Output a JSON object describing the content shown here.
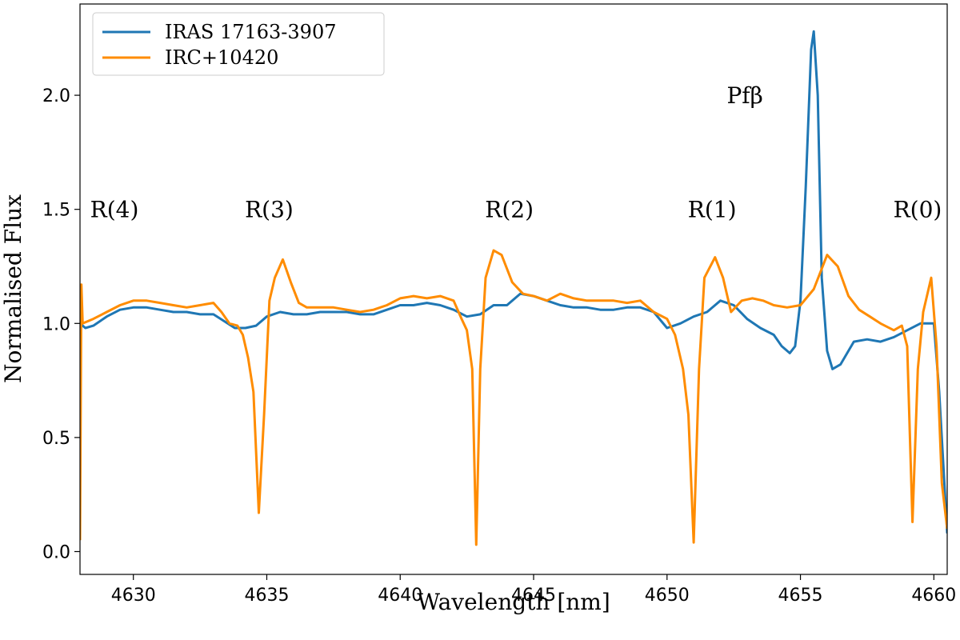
{
  "chart_data": {
    "type": "line",
    "title": "",
    "xlabel": "Wavelength [nm]",
    "ylabel": "Normalised Flux",
    "xlim": [
      4628.0,
      4660.5
    ],
    "ylim": [
      -0.1,
      2.4
    ],
    "xticks": [
      4630,
      4635,
      4640,
      4645,
      4650,
      4655,
      4660
    ],
    "yticks": [
      0.0,
      0.5,
      1.0,
      1.5,
      2.0
    ],
    "xtick_labels": [
      "4630",
      "4635",
      "4640",
      "4645",
      "4650",
      "4655",
      "4660"
    ],
    "ytick_labels": [
      "0.0",
      "0.5",
      "1.0",
      "1.5",
      "2.0"
    ],
    "grid": false,
    "legend_position": "top-left",
    "annotations": [
      {
        "text": "R(4)",
        "x": 4630.2,
        "y": 1.5
      },
      {
        "text": "R(3)",
        "x": 4636.0,
        "y": 1.5
      },
      {
        "text": "R(2)",
        "x": 4645.0,
        "y": 1.5
      },
      {
        "text": "R(1)",
        "x": 4652.6,
        "y": 1.5
      },
      {
        "text": "Pfβ",
        "x": 4653.6,
        "y": 2.0
      },
      {
        "text": "R(0)",
        "x": 4660.3,
        "y": 1.5
      }
    ],
    "series": [
      {
        "name": "IRAS 17163-3907",
        "color": "#1f77b4",
        "points": [
          [
            4628.0,
            1.0
          ],
          [
            4628.2,
            0.98
          ],
          [
            4628.5,
            0.99
          ],
          [
            4629.0,
            1.03
          ],
          [
            4629.5,
            1.06
          ],
          [
            4630.0,
            1.07
          ],
          [
            4630.5,
            1.07
          ],
          [
            4631.0,
            1.06
          ],
          [
            4631.5,
            1.05
          ],
          [
            4632.0,
            1.05
          ],
          [
            4632.5,
            1.04
          ],
          [
            4633.0,
            1.04
          ],
          [
            4633.4,
            1.01
          ],
          [
            4633.8,
            0.98
          ],
          [
            4634.2,
            0.98
          ],
          [
            4634.6,
            0.99
          ],
          [
            4635.0,
            1.03
          ],
          [
            4635.5,
            1.05
          ],
          [
            4636.0,
            1.04
          ],
          [
            4636.5,
            1.04
          ],
          [
            4637.0,
            1.05
          ],
          [
            4637.5,
            1.05
          ],
          [
            4638.0,
            1.05
          ],
          [
            4638.5,
            1.04
          ],
          [
            4639.0,
            1.04
          ],
          [
            4639.5,
            1.06
          ],
          [
            4640.0,
            1.08
          ],
          [
            4640.5,
            1.08
          ],
          [
            4641.0,
            1.09
          ],
          [
            4641.5,
            1.08
          ],
          [
            4642.0,
            1.06
          ],
          [
            4642.5,
            1.03
          ],
          [
            4643.0,
            1.04
          ],
          [
            4643.5,
            1.08
          ],
          [
            4644.0,
            1.08
          ],
          [
            4644.5,
            1.13
          ],
          [
            4645.0,
            1.12
          ],
          [
            4645.5,
            1.1
          ],
          [
            4646.0,
            1.08
          ],
          [
            4646.5,
            1.07
          ],
          [
            4647.0,
            1.07
          ],
          [
            4647.5,
            1.06
          ],
          [
            4648.0,
            1.06
          ],
          [
            4648.5,
            1.07
          ],
          [
            4649.0,
            1.07
          ],
          [
            4649.5,
            1.05
          ],
          [
            4650.0,
            0.98
          ],
          [
            4650.5,
            1.0
          ],
          [
            4651.0,
            1.03
          ],
          [
            4651.5,
            1.05
          ],
          [
            4652.0,
            1.1
          ],
          [
            4652.5,
            1.08
          ],
          [
            4653.0,
            1.02
          ],
          [
            4653.5,
            0.98
          ],
          [
            4654.0,
            0.95
          ],
          [
            4654.3,
            0.9
          ],
          [
            4654.6,
            0.87
          ],
          [
            4654.8,
            0.9
          ],
          [
            4655.0,
            1.1
          ],
          [
            4655.2,
            1.6
          ],
          [
            4655.4,
            2.2
          ],
          [
            4655.5,
            2.28
          ],
          [
            4655.65,
            2.0
          ],
          [
            4655.8,
            1.2
          ],
          [
            4656.0,
            0.88
          ],
          [
            4656.2,
            0.8
          ],
          [
            4656.5,
            0.82
          ],
          [
            4657.0,
            0.92
          ],
          [
            4657.5,
            0.93
          ],
          [
            4658.0,
            0.92
          ],
          [
            4658.5,
            0.94
          ],
          [
            4659.0,
            0.97
          ],
          [
            4659.5,
            1.0
          ],
          [
            4660.0,
            1.0
          ],
          [
            4660.2,
            0.7
          ],
          [
            4660.5,
            0.08
          ]
        ]
      },
      {
        "name": "IRC+10420",
        "color": "#ff8c00",
        "points": [
          [
            4628.0,
            0.05
          ],
          [
            4628.05,
            1.17
          ],
          [
            4628.1,
            1.0
          ],
          [
            4628.5,
            1.02
          ],
          [
            4629.0,
            1.05
          ],
          [
            4629.5,
            1.08
          ],
          [
            4630.0,
            1.1
          ],
          [
            4630.5,
            1.1
          ],
          [
            4631.0,
            1.09
          ],
          [
            4631.5,
            1.08
          ],
          [
            4632.0,
            1.07
          ],
          [
            4632.5,
            1.08
          ],
          [
            4633.0,
            1.09
          ],
          [
            4633.3,
            1.05
          ],
          [
            4633.6,
            1.0
          ],
          [
            4633.9,
            0.99
          ],
          [
            4634.1,
            0.95
          ],
          [
            4634.3,
            0.85
          ],
          [
            4634.5,
            0.7
          ],
          [
            4634.7,
            0.17
          ],
          [
            4634.9,
            0.6
          ],
          [
            4635.1,
            1.1
          ],
          [
            4635.3,
            1.2
          ],
          [
            4635.6,
            1.28
          ],
          [
            4635.9,
            1.18
          ],
          [
            4636.2,
            1.09
          ],
          [
            4636.5,
            1.07
          ],
          [
            4637.0,
            1.07
          ],
          [
            4637.5,
            1.07
          ],
          [
            4638.0,
            1.06
          ],
          [
            4638.5,
            1.05
          ],
          [
            4639.0,
            1.06
          ],
          [
            4639.5,
            1.08
          ],
          [
            4640.0,
            1.11
          ],
          [
            4640.5,
            1.12
          ],
          [
            4641.0,
            1.11
          ],
          [
            4641.5,
            1.12
          ],
          [
            4642.0,
            1.1
          ],
          [
            4642.3,
            1.02
          ],
          [
            4642.5,
            0.97
          ],
          [
            4642.7,
            0.8
          ],
          [
            4642.85,
            0.03
          ],
          [
            4643.0,
            0.8
          ],
          [
            4643.2,
            1.2
          ],
          [
            4643.5,
            1.32
          ],
          [
            4643.8,
            1.3
          ],
          [
            4644.2,
            1.18
          ],
          [
            4644.6,
            1.13
          ],
          [
            4645.0,
            1.12
          ],
          [
            4645.5,
            1.1
          ],
          [
            4646.0,
            1.13
          ],
          [
            4646.5,
            1.11
          ],
          [
            4647.0,
            1.1
          ],
          [
            4647.5,
            1.1
          ],
          [
            4648.0,
            1.1
          ],
          [
            4648.5,
            1.09
          ],
          [
            4649.0,
            1.1
          ],
          [
            4649.5,
            1.05
          ],
          [
            4650.0,
            1.02
          ],
          [
            4650.3,
            0.95
          ],
          [
            4650.6,
            0.8
          ],
          [
            4650.8,
            0.6
          ],
          [
            4651.0,
            0.04
          ],
          [
            4651.2,
            0.8
          ],
          [
            4651.4,
            1.2
          ],
          [
            4651.8,
            1.29
          ],
          [
            4652.1,
            1.2
          ],
          [
            4652.4,
            1.05
          ],
          [
            4652.8,
            1.1
          ],
          [
            4653.2,
            1.11
          ],
          [
            4653.6,
            1.1
          ],
          [
            4654.0,
            1.08
          ],
          [
            4654.5,
            1.07
          ],
          [
            4655.0,
            1.08
          ],
          [
            4655.5,
            1.15
          ],
          [
            4656.0,
            1.3
          ],
          [
            4656.4,
            1.25
          ],
          [
            4656.8,
            1.12
          ],
          [
            4657.2,
            1.06
          ],
          [
            4657.6,
            1.03
          ],
          [
            4658.0,
            1.0
          ],
          [
            4658.5,
            0.97
          ],
          [
            4658.8,
            0.99
          ],
          [
            4659.0,
            0.9
          ],
          [
            4659.2,
            0.13
          ],
          [
            4659.4,
            0.8
          ],
          [
            4659.6,
            1.05
          ],
          [
            4659.9,
            1.2
          ],
          [
            4660.1,
            0.9
          ],
          [
            4660.3,
            0.3
          ],
          [
            4660.5,
            0.1
          ]
        ]
      }
    ]
  }
}
